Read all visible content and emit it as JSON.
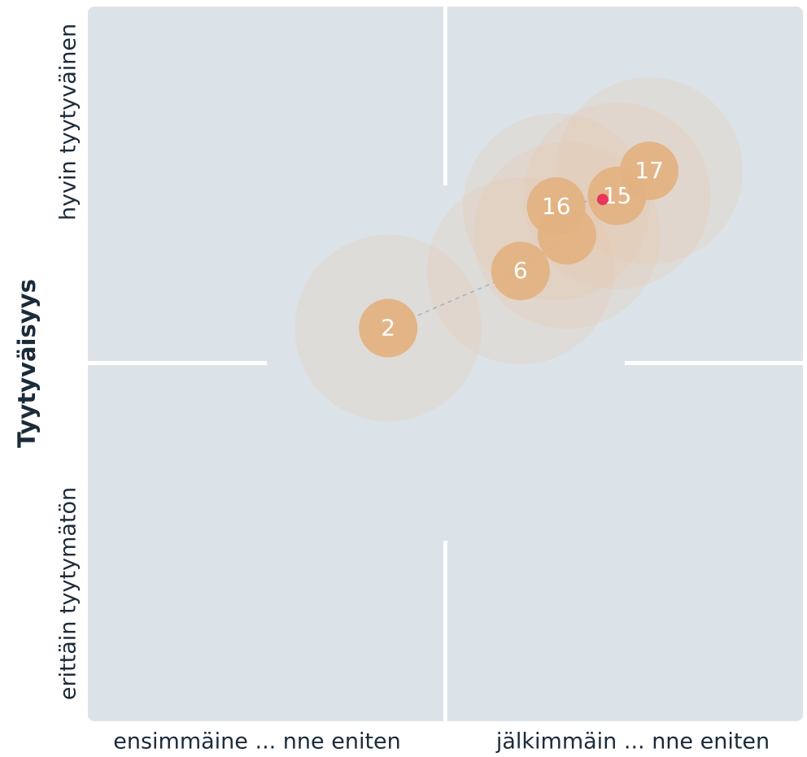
{
  "chart_data": {
    "type": "scatter",
    "title": "Tyytyväisyys",
    "x_labels": [
      "ensimmäine ... nne eniten",
      "jälkimmäin ... nne eniten"
    ],
    "y_labels": [
      "erittäin tyytymätön",
      "hyvin tyytyväinen"
    ],
    "xlim": [
      -1,
      1
    ],
    "ylim": [
      -1,
      1
    ],
    "color": "#e3b282",
    "x": [
      -0.16,
      0.21,
      0.34,
      0.31,
      0.48,
      0.57
    ],
    "values": [
      0.1,
      0.26,
      0.36,
      0.44,
      0.47,
      0.54
    ],
    "labels": [
      "2",
      "6",
      null,
      "16",
      "15",
      "17"
    ],
    "highlight": {
      "x": 0.44,
      "values": 0.46,
      "color": "#e8365d"
    }
  }
}
